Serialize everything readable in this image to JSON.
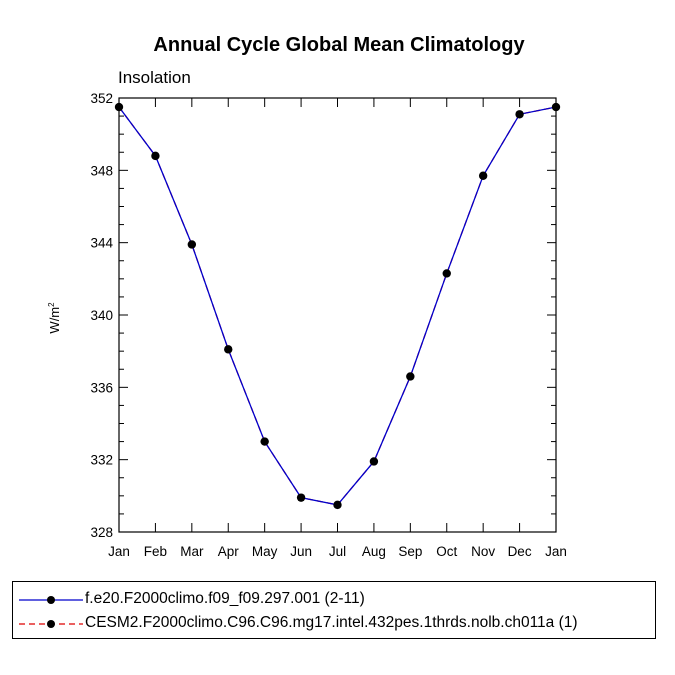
{
  "chart_data": {
    "type": "line",
    "title": "Annual Cycle Global Mean Climatology",
    "subtitle": "Insolation",
    "xlabel": "",
    "ylabel": "W/m",
    "ylabel_superscript": "2",
    "categories": [
      "Jan",
      "Feb",
      "Mar",
      "Apr",
      "May",
      "Jun",
      "Jul",
      "Aug",
      "Sep",
      "Oct",
      "Nov",
      "Dec",
      "Jan"
    ],
    "ylim": [
      328,
      352
    ],
    "yticks": [
      328,
      332,
      336,
      340,
      344,
      348,
      352
    ],
    "series": [
      {
        "name": "f.e20.F2000climo.f09_f09.297.001 (2-11)",
        "color": "#0000cc",
        "line_style": "solid",
        "marker": "dot",
        "values": [
          351.5,
          348.8,
          343.9,
          338.1,
          333.0,
          329.9,
          329.5,
          331.9,
          336.6,
          342.3,
          347.7,
          351.1,
          351.5
        ]
      },
      {
        "name": "CESM2.F2000climo.C96.C96.mg17.intel.432pes.1thrds.nolb.ch011a (1)",
        "color": "#dd0000",
        "line_style": "dashed",
        "marker": "dot",
        "values": [
          351.5,
          348.8,
          343.9,
          338.1,
          333.0,
          329.9,
          329.5,
          331.9,
          336.6,
          342.3,
          347.7,
          351.1,
          351.5
        ]
      }
    ],
    "legend_position": "bottom"
  }
}
